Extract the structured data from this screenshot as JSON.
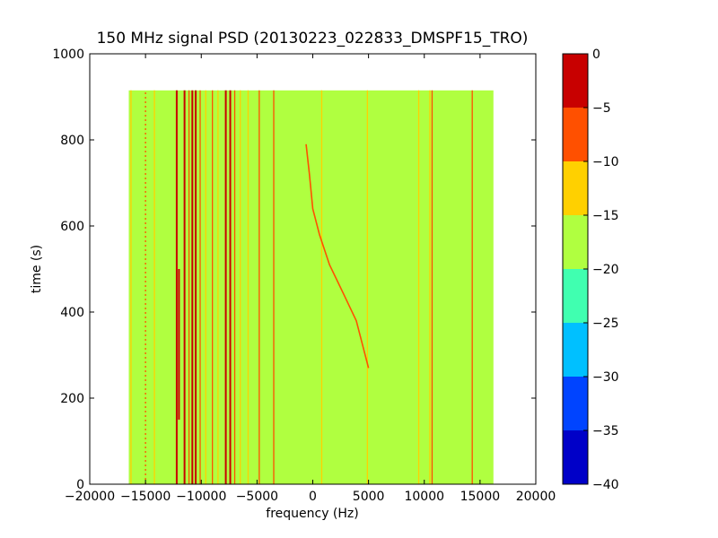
{
  "chart_data": {
    "type": "heatmap",
    "title": "150 MHz signal PSD (20130223_022833_DMSPF15_TRO)",
    "xlabel": "frequency (Hz)",
    "ylabel": "time (s)",
    "xlim": [
      -20000,
      20000
    ],
    "ylim": [
      0,
      1000
    ],
    "x_ticks": [
      "−20000",
      "−15000",
      "−10000",
      "−5000",
      "0",
      "5000",
      "10000",
      "15000",
      "20000"
    ],
    "y_ticks": [
      "0",
      "200",
      "400",
      "600",
      "800",
      "1000"
    ],
    "data_extent": {
      "freq_min": -16500,
      "freq_max": 16200,
      "time_min": 0,
      "time_max": 915
    },
    "background_level": -17.5,
    "colorbar": {
      "levels": [
        -40,
        -35,
        -30,
        -25,
        -20,
        -15,
        -10,
        -5,
        0
      ],
      "tick_labels": [
        "−40",
        "−35",
        "−30",
        "−25",
        "−20",
        "−15",
        "−10",
        "−5",
        "0"
      ],
      "colors": [
        "#0000c8",
        "#0044ff",
        "#00c0ff",
        "#40ffb0",
        "#b0ff40",
        "#ffd000",
        "#ff5000",
        "#c80000"
      ]
    },
    "lines": [
      {
        "f": -16300,
        "t0": 0,
        "t1": 915,
        "level": -12.5
      },
      {
        "f": -15000,
        "t0": 0,
        "t1": 915,
        "level": -7.5,
        "dashed": true
      },
      {
        "f": -14200,
        "t0": 0,
        "t1": 915,
        "level": -12.5
      },
      {
        "f": -12200,
        "t0": 0,
        "t1": 915,
        "level": -2.5
      },
      {
        "f": -12000,
        "t0": 150,
        "t1": 500,
        "level": -2.5
      },
      {
        "f": -11500,
        "t0": 0,
        "t1": 915,
        "level": -2.5
      },
      {
        "f": -11100,
        "t0": 0,
        "t1": 915,
        "level": -7.5
      },
      {
        "f": -10800,
        "t0": 0,
        "t1": 915,
        "level": -2.5
      },
      {
        "f": -10500,
        "t0": 0,
        "t1": 915,
        "level": -2.5
      },
      {
        "f": -10100,
        "t0": 0,
        "t1": 915,
        "level": -7.5
      },
      {
        "f": -9600,
        "t0": 0,
        "t1": 915,
        "level": -12.5
      },
      {
        "f": -9000,
        "t0": 0,
        "t1": 915,
        "level": -7.5
      },
      {
        "f": -8500,
        "t0": 0,
        "t1": 915,
        "level": -12.5
      },
      {
        "f": -7800,
        "t0": 0,
        "t1": 915,
        "level": -2.5
      },
      {
        "f": -7400,
        "t0": 0,
        "t1": 915,
        "level": -2.5
      },
      {
        "f": -7000,
        "t0": 0,
        "t1": 915,
        "level": -7.5
      },
      {
        "f": -6500,
        "t0": 0,
        "t1": 915,
        "level": -12.5
      },
      {
        "f": -5800,
        "t0": 0,
        "t1": 915,
        "level": -12.5
      },
      {
        "f": -4800,
        "t0": 0,
        "t1": 915,
        "level": -7.5
      },
      {
        "f": -3500,
        "t0": 0,
        "t1": 915,
        "level": -7.5
      },
      {
        "f": 800,
        "t0": 0,
        "t1": 915,
        "level": -12.5
      },
      {
        "f": 4900,
        "t0": 0,
        "t1": 915,
        "level": -12.5
      },
      {
        "f": 9500,
        "t0": 0,
        "t1": 915,
        "level": -12.5
      },
      {
        "f": 10500,
        "t0": 0,
        "t1": 915,
        "level": -12.5
      },
      {
        "f": 10700,
        "t0": 0,
        "t1": 915,
        "level": -7.5
      },
      {
        "f": 14300,
        "t0": 0,
        "t1": 915,
        "level": -7.5
      }
    ],
    "doppler_trace": {
      "level": -7.5,
      "points": [
        [
          -600,
          790
        ],
        [
          -300,
          720
        ],
        [
          0,
          640
        ],
        [
          600,
          580
        ],
        [
          1500,
          510
        ],
        [
          2800,
          440
        ],
        [
          3900,
          380
        ],
        [
          4500,
          320
        ],
        [
          5000,
          270
        ]
      ]
    }
  }
}
